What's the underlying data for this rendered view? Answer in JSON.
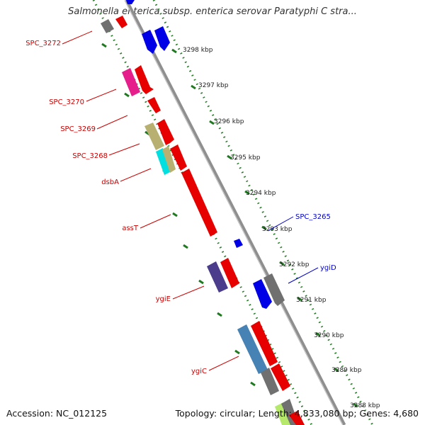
{
  "title": "Salmonella enterica subsp. enterica serovar Paratyphi C stra...",
  "footer": {
    "accession": "Accession: NC_012125",
    "summary": "Topology: circular; Length: 4,833,080 bp; Genes: 4,680"
  },
  "colors": {
    "backbone": "#8f8f8f",
    "scale_line": "#1f7a1f",
    "label_red": "#cc0000",
    "label_blue": "#0000cc"
  },
  "scale_ticks": [
    "3298 kbp",
    "3297 kbp",
    "3296 kbp",
    "3295 kbp",
    "3294 kbp",
    "3293 kbp",
    "3292 kbp",
    "3291 kbp",
    "3290 kbp",
    "3289 kbp",
    "3288 kbp"
  ],
  "gene_labels_left": [
    "SPC_3272",
    "SPC_3270",
    "SPC_3269",
    "SPC_3268",
    "dsbA",
    "assT",
    "ygiE",
    "ygiC"
  ],
  "gene_labels_right": [
    "SPC_3265",
    "ygiD"
  ]
}
